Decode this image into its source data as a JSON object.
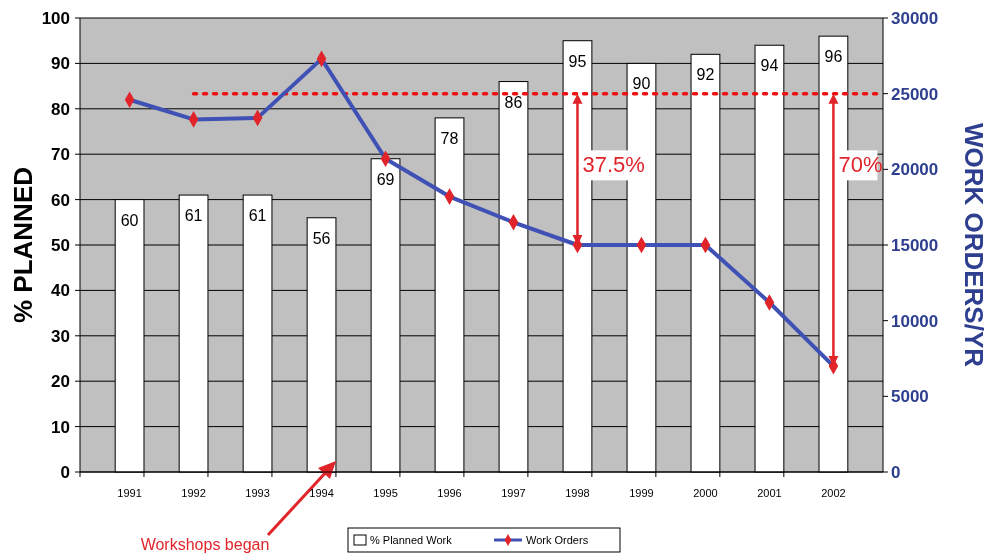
{
  "chart_data": {
    "type": "bar",
    "ylabel": "% PLANNED",
    "y2label": "WORK ORDERS/YR",
    "categories": [
      "1991",
      "1992",
      "1993",
      "1994",
      "1995",
      "1996",
      "1997",
      "1998",
      "1999",
      "2000",
      "2001",
      "2002"
    ],
    "series": [
      {
        "name": "% Planned Work",
        "color": "#ffffff",
        "values": [
          60,
          61,
          61,
          56,
          69,
          78,
          86,
          95,
          90,
          92,
          94,
          96
        ],
        "value_labels": [
          "60",
          "61",
          "61",
          "56",
          "69",
          "78",
          "86",
          "95",
          "90",
          "92",
          "94",
          "96"
        ]
      },
      {
        "name": "Work Orders",
        "type": "line",
        "axis": "y2",
        "color": "#3f51b5",
        "values": [
          24600,
          23300,
          23400,
          27300,
          20700,
          18200,
          16500,
          15000,
          15000,
          15000,
          11200,
          7000
        ]
      }
    ],
    "ylim": [
      0,
      100
    ],
    "yticks": [
      0,
      10,
      20,
      30,
      40,
      50,
      60,
      70,
      80,
      90,
      100
    ],
    "y2lim": [
      0,
      30000
    ],
    "y2ticks": [
      0,
      5000,
      10000,
      15000,
      20000,
      25000,
      30000
    ],
    "ref_lines": [
      {
        "axis": "y2",
        "value": 25000,
        "color": "#ee1111",
        "line_style": "dotted"
      }
    ],
    "annotations": [
      "37.5%",
      "70%",
      "Workshops began"
    ],
    "grid": "y",
    "legend": "bottom",
    "marker": "diamond"
  }
}
